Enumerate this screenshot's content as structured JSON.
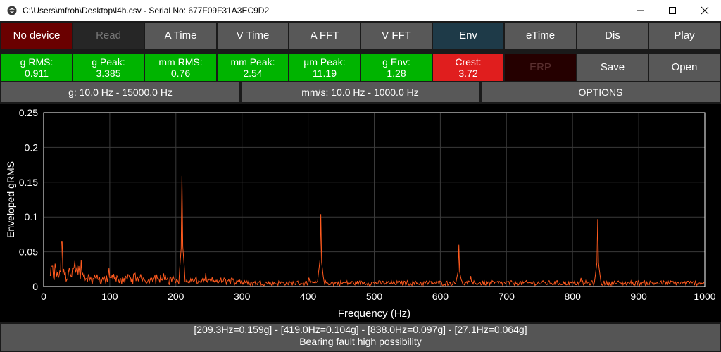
{
  "window": {
    "title": "C:\\Users\\mfroh\\Desktop\\l4h.csv - Serial No: 677F09F31A3EC9D2",
    "icon": "app-logo-icon"
  },
  "toolbar": {
    "row1": [
      {
        "id": "no-device",
        "label": "No device",
        "bg": "#6a0000",
        "fg": "#ffffff"
      },
      {
        "id": "read",
        "label": "Read",
        "bg": "#262626",
        "fg": "#777777"
      },
      {
        "id": "a-time",
        "label": "A Time",
        "bg": "#585858",
        "fg": "#ffffff"
      },
      {
        "id": "v-time",
        "label": "V Time",
        "bg": "#585858",
        "fg": "#ffffff"
      },
      {
        "id": "a-fft",
        "label": "A FFT",
        "bg": "#585858",
        "fg": "#ffffff"
      },
      {
        "id": "v-fft",
        "label": "V FFT",
        "bg": "#585858",
        "fg": "#ffffff"
      },
      {
        "id": "env",
        "label": "Env",
        "bg": "#1e3a48",
        "fg": "#ffffff"
      },
      {
        "id": "etime",
        "label": "eTime",
        "bg": "#585858",
        "fg": "#ffffff"
      },
      {
        "id": "dis",
        "label": "Dis",
        "bg": "#585858",
        "fg": "#ffffff"
      },
      {
        "id": "play",
        "label": "Play",
        "bg": "#585858",
        "fg": "#ffffff"
      }
    ],
    "row2": [
      {
        "id": "g-rms",
        "label": "g RMS:",
        "value": "0.911",
        "bg": "#00b400",
        "fg": "#ffffff"
      },
      {
        "id": "g-peak",
        "label": "g Peak:",
        "value": "3.385",
        "bg": "#00b400",
        "fg": "#ffffff"
      },
      {
        "id": "mm-rms",
        "label": "mm RMS:",
        "value": "0.76",
        "bg": "#00b400",
        "fg": "#ffffff"
      },
      {
        "id": "mm-peak",
        "label": "mm Peak:",
        "value": "2.54",
        "bg": "#00b400",
        "fg": "#ffffff"
      },
      {
        "id": "um-peak",
        "label": "µm Peak:",
        "value": "11.19",
        "bg": "#00b400",
        "fg": "#ffffff"
      },
      {
        "id": "g-env",
        "label": "g Env:",
        "value": "1.28",
        "bg": "#00b400",
        "fg": "#ffffff"
      },
      {
        "id": "crest",
        "label": "Crest:",
        "value": "3.72",
        "bg": "#e01e1e",
        "fg": "#ffffff"
      },
      {
        "id": "erp",
        "label": "ERP",
        "value": "",
        "bg": "#250000",
        "fg": "#5a3030"
      },
      {
        "id": "save",
        "label": "Save",
        "value": "",
        "bg": "#585858",
        "fg": "#ffffff"
      },
      {
        "id": "open",
        "label": "Open",
        "value": "",
        "bg": "#585858",
        "fg": "#ffffff"
      }
    ],
    "row3": [
      {
        "id": "g-filter",
        "label": "g: 10.0 Hz - 15000.0 Hz"
      },
      {
        "id": "mms-filter",
        "label": "mm/s: 10.0 Hz - 1000.0 Hz"
      },
      {
        "id": "options",
        "label": "OPTIONS"
      }
    ]
  },
  "chart_data": {
    "type": "line",
    "xlabel": "Frequency (Hz)",
    "ylabel": "Enveloped gRMS",
    "xlim": [
      0,
      1000
    ],
    "ylim": [
      0,
      0.25
    ],
    "xticks": [
      0,
      100,
      200,
      300,
      400,
      500,
      600,
      700,
      800,
      900,
      1000
    ],
    "yticks": [
      0,
      0.05,
      0.1,
      0.15,
      0.2,
      0.25
    ],
    "ytick_labels": [
      "0",
      "0.05",
      "0.1",
      "0.15",
      "0.2",
      "0.25"
    ],
    "grid": true,
    "series_color": "#ff5a1e",
    "peaks": [
      {
        "x": 209.3,
        "y": 0.159
      },
      {
        "x": 419.0,
        "y": 0.104
      },
      {
        "x": 838.0,
        "y": 0.097
      },
      {
        "x": 27.1,
        "y": 0.064
      },
      {
        "x": 628.0,
        "y": 0.06
      }
    ],
    "noise_floor": 0.005
  },
  "status": {
    "line1": "[209.3Hz=0.159g] - [419.0Hz=0.104g] - [838.0Hz=0.097g] - [27.1Hz=0.064g]",
    "line2": "Bearing fault high possibility"
  }
}
